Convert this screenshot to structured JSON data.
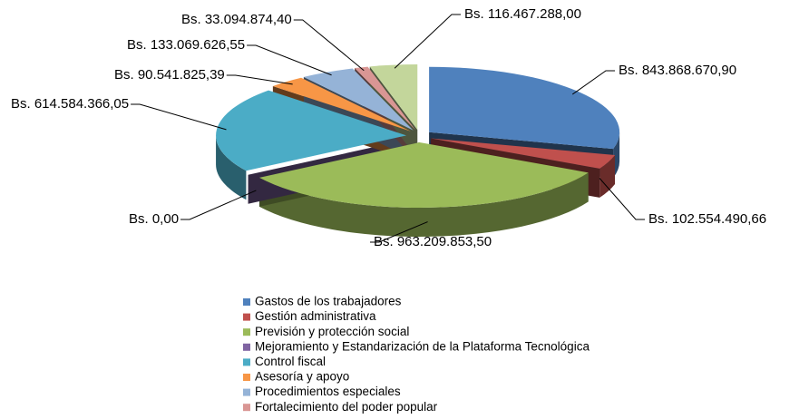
{
  "chart_data": {
    "type": "pie",
    "categories": [
      "Gastos de los trabajadores",
      "Gestión administrativa",
      "Previsión y protección social",
      "Mejoramiento y Estandarización de la Plataforma Tecnológica",
      "Control fiscal",
      "Asesoría y apoyo",
      "Procedimientos especiales",
      "Fortalecimiento del poder popular",
      null
    ],
    "values": [
      843868670.9,
      102554490.66,
      963209853.5,
      0.0,
      614584366.05,
      90541825.39,
      133069626.55,
      33094874.4,
      116467288.0
    ],
    "value_labels": [
      "Bs.  843.868.670,90",
      "Bs.  102.554.490,66",
      "Bs.  963.209.853,50",
      "Bs.  0,00",
      "Bs.  614.584.366,05",
      "Bs.  90.541.825,39",
      "Bs.  133.069.626,55",
      "Bs.  33.094.874,40",
      "Bs.  116.467.288,00"
    ],
    "colors": [
      "#4f81bd",
      "#c0504d",
      "#9bbb59",
      "#8064a2",
      "#4bacc6",
      "#f79646",
      "#95b3d7",
      "#d99694",
      "#c3d69b"
    ],
    "legend": "bottom"
  }
}
